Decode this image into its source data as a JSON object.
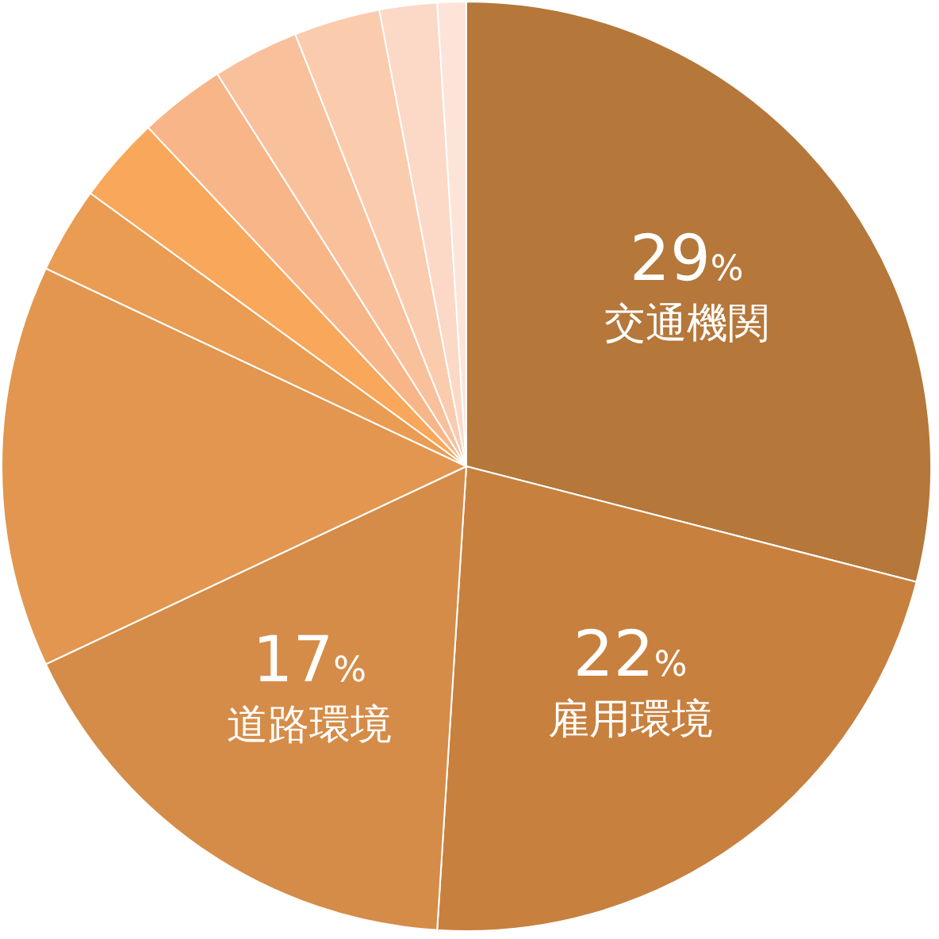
{
  "chart_data": {
    "type": "pie",
    "categories": [
      "交通機関",
      "雇用環境",
      "道路環境",
      null,
      null,
      null,
      null,
      null,
      null,
      null,
      null
    ],
    "values": [
      29,
      22,
      17,
      14,
      3,
      3,
      3,
      3,
      3,
      2,
      1
    ],
    "value_labels": [
      "29%",
      "22%",
      "17%",
      null,
      null,
      null,
      null,
      null,
      null,
      null,
      null
    ],
    "colors": [
      "#b5773a",
      "#c8803e",
      "#d58c48",
      "#e2964f",
      "#e99c52",
      "#f9a75a",
      "#f8b587",
      "#f9c09c",
      "#fbcbae",
      "#fcd8c6",
      "#fde4d9"
    ]
  }
}
